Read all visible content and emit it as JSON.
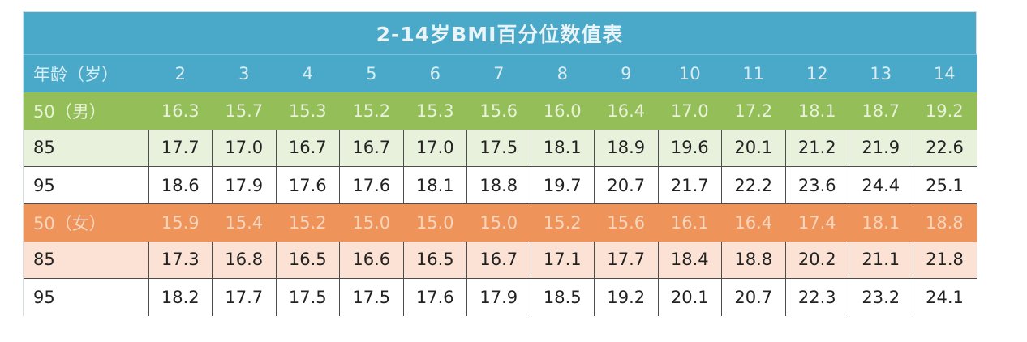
{
  "title": "2-14岁BMI百分位数值表",
  "colors": {
    "header_blue": "#4aa8c8",
    "male_green": "#94be58",
    "male_tint": "#e8f1dc",
    "female_orange": "#ee9359",
    "female_tint": "#fbe2d5"
  },
  "header": {
    "label": "年龄（岁）",
    "ages": [
      "2",
      "3",
      "4",
      "5",
      "6",
      "7",
      "8",
      "9",
      "10",
      "11",
      "12",
      "13",
      "14"
    ]
  },
  "rows": [
    {
      "label": "50（男）",
      "values": [
        "16.3",
        "15.7",
        "15.3",
        "15.2",
        "15.3",
        "15.6",
        "16.0",
        "16.4",
        "17.0",
        "17.2",
        "18.1",
        "18.7",
        "19.2"
      ]
    },
    {
      "label": "85",
      "values": [
        "17.7",
        "17.0",
        "16.7",
        "16.7",
        "17.0",
        "17.5",
        "18.1",
        "18.9",
        "19.6",
        "20.1",
        "21.2",
        "21.9",
        "22.6"
      ]
    },
    {
      "label": "95",
      "values": [
        "18.6",
        "17.9",
        "17.6",
        "17.6",
        "18.1",
        "18.8",
        "19.7",
        "20.7",
        "21.7",
        "22.2",
        "23.6",
        "24.4",
        "25.1"
      ]
    },
    {
      "label": "50（女）",
      "values": [
        "15.9",
        "15.4",
        "15.2",
        "15.0",
        "15.0",
        "15.0",
        "15.2",
        "15.6",
        "16.1",
        "16.4",
        "17.4",
        "18.1",
        "18.8"
      ]
    },
    {
      "label": "85",
      "values": [
        "17.3",
        "16.8",
        "16.5",
        "16.6",
        "16.5",
        "16.7",
        "17.1",
        "17.7",
        "18.4",
        "18.8",
        "20.2",
        "21.1",
        "21.8"
      ]
    },
    {
      "label": "95",
      "values": [
        "18.2",
        "17.7",
        "17.5",
        "17.5",
        "17.6",
        "17.9",
        "18.5",
        "19.2",
        "20.1",
        "20.7",
        "22.3",
        "23.2",
        "24.1"
      ]
    }
  ]
}
